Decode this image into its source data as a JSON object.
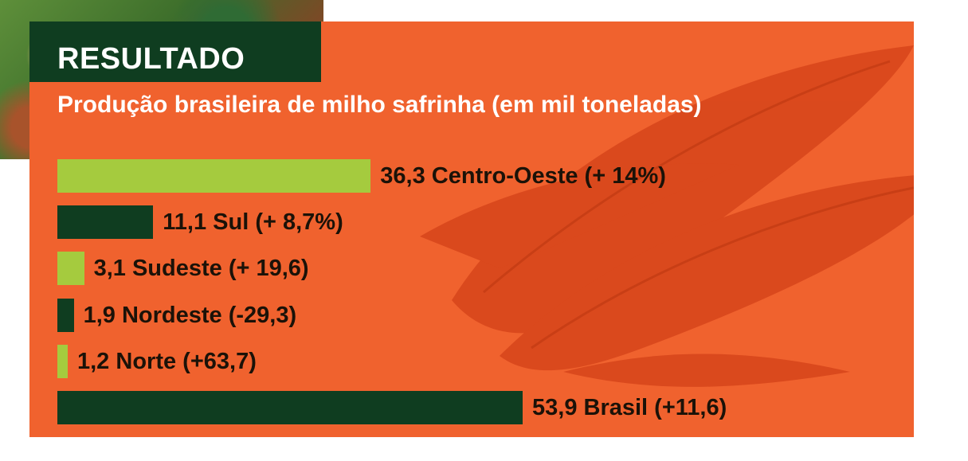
{
  "chart_data": {
    "type": "bar",
    "orientation": "horizontal",
    "title": "RESULTADO",
    "subtitle": "Produção brasileira de milho safrinha (em mil toneladas)",
    "categories": [
      "Centro-Oeste",
      "Sul",
      "Sudeste",
      "Nordeste",
      "Norte",
      "Brasil"
    ],
    "values": [
      36.3,
      11.1,
      3.1,
      1.9,
      1.2,
      53.9
    ],
    "labels": [
      "36,3 Centro-Oeste (+ 14%)",
      "11,1 Sul (+ 8,7%)",
      "3,1 Sudeste (+ 19,6)",
      "1,9 Nordeste (-29,3)",
      "1,2 Norte (+63,7)",
      "53,9 Brasil (+11,6)"
    ],
    "bar_colors": [
      "#a5cb3e",
      "#0f3d20",
      "#a5cb3e",
      "#0f3d20",
      "#a5cb3e",
      "#0f3d20"
    ],
    "grid": false,
    "legend": "none"
  },
  "colors": {
    "panel_background": "#f0622e",
    "title_band": "#0f3d20",
    "light_green": "#a5cb3e",
    "dark_green": "#0f3d20",
    "label_text": "#1b1208",
    "title_text": "#ffffff"
  }
}
